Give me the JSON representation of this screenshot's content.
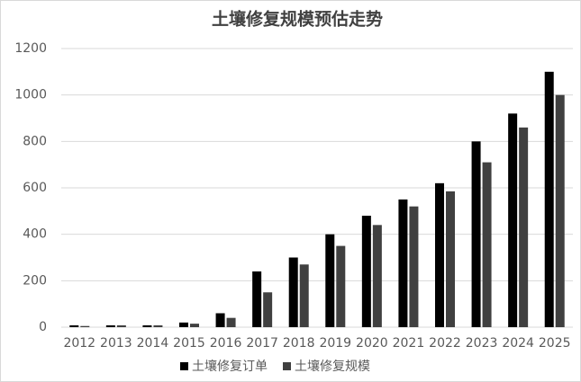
{
  "chart_data": {
    "type": "bar",
    "title": "土壤修复规模预估走势",
    "categories": [
      "2012",
      "2013",
      "2014",
      "2015",
      "2016",
      "2017",
      "2018",
      "2019",
      "2020",
      "2021",
      "2022",
      "2023",
      "2024",
      "2025"
    ],
    "series": [
      {
        "name": "土壤修复订单",
        "color": "#000000",
        "values": [
          8,
          8,
          8,
          20,
          60,
          240,
          300,
          400,
          480,
          550,
          620,
          800,
          920,
          1100
        ]
      },
      {
        "name": "土壤修复规模",
        "color": "#404040",
        "values": [
          5,
          8,
          8,
          15,
          40,
          150,
          270,
          350,
          440,
          520,
          585,
          710,
          860,
          1000
        ]
      }
    ],
    "ylim": [
      0,
      1200
    ],
    "yticks": [
      0,
      200,
      400,
      600,
      800,
      1000,
      1200
    ],
    "grid": true,
    "legend": "bottom"
  }
}
